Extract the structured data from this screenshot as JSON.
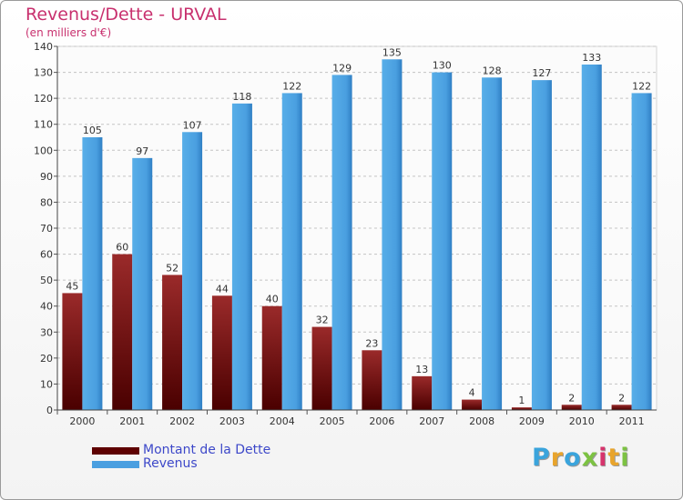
{
  "chart_data": {
    "type": "bar",
    "title": "Revenus/Dette - URVAL",
    "subtitle": "(en milliers d'€)",
    "categories": [
      "2000",
      "2001",
      "2002",
      "2003",
      "2004",
      "2005",
      "2006",
      "2007",
      "2008",
      "2009",
      "2010",
      "2011"
    ],
    "series": [
      {
        "name": "Montant de la Dette",
        "values": [
          45,
          60,
          52,
          44,
          40,
          32,
          23,
          13,
          4,
          1,
          2,
          2
        ]
      },
      {
        "name": "Revenus",
        "values": [
          105,
          97,
          107,
          118,
          122,
          129,
          135,
          130,
          128,
          127,
          133,
          122
        ]
      }
    ],
    "ylim": [
      0,
      140
    ],
    "yticks": [
      0,
      10,
      20,
      30,
      40,
      50,
      60,
      70,
      80,
      90,
      100,
      110,
      120,
      130,
      140
    ],
    "grid": true,
    "legend": "bottom-left"
  },
  "legend": [
    {
      "label": "Montant de la Dette",
      "color": "#7a0c0c"
    },
    {
      "label": "Revenus",
      "color": "#4a9fe0"
    }
  ],
  "logo": {
    "text": "Proxiti",
    "colors": [
      "#3aa4dc",
      "#e8a42c",
      "#3aa4dc",
      "#7cc242",
      "#d6336c",
      "#e8a42c",
      "#7cc242"
    ]
  }
}
